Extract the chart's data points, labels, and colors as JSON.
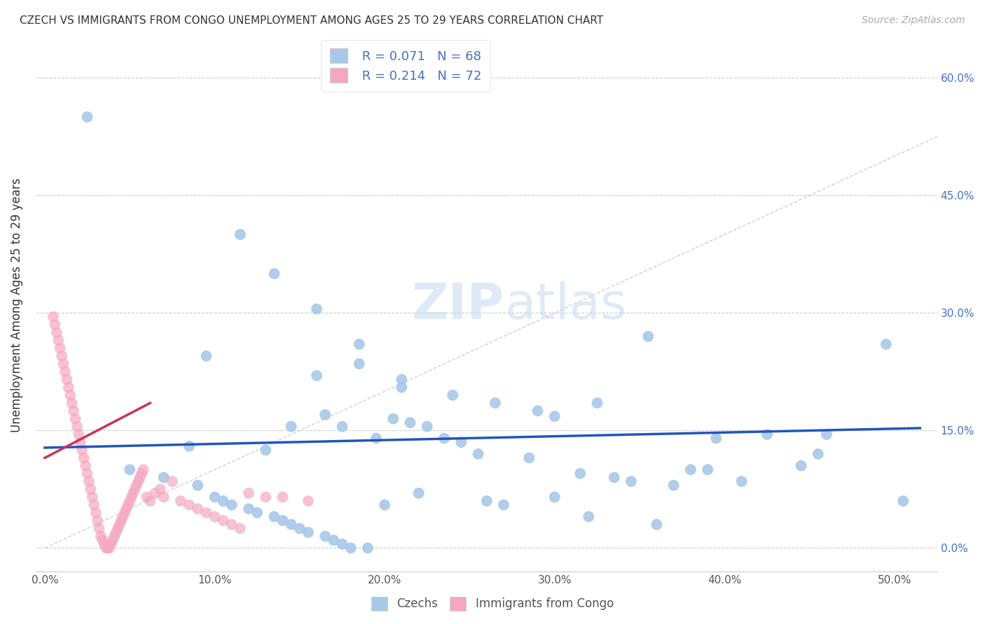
{
  "title": "CZECH VS IMMIGRANTS FROM CONGO UNEMPLOYMENT AMONG AGES 25 TO 29 YEARS CORRELATION CHART",
  "source": "Source: ZipAtlas.com",
  "xlabel_ticks": [
    "0.0%",
    "10.0%",
    "20.0%",
    "30.0%",
    "40.0%",
    "50.0%"
  ],
  "xlabel_vals": [
    0.0,
    0.1,
    0.2,
    0.3,
    0.4,
    0.5
  ],
  "ylabel_ticks": [
    "0.0%",
    "15.0%",
    "30.0%",
    "45.0%",
    "60.0%"
  ],
  "ylabel_vals": [
    0.0,
    0.15,
    0.3,
    0.45,
    0.6
  ],
  "xlim": [
    -0.005,
    0.525
  ],
  "ylim": [
    -0.03,
    0.65
  ],
  "czech_R": 0.071,
  "czech_N": 68,
  "congo_R": 0.214,
  "congo_N": 72,
  "watermark_zip": "ZIP",
  "watermark_atlas": "atlas",
  "czech_color": "#a8c8e8",
  "congo_color": "#f4a8c0",
  "czech_line_color": "#2255BB",
  "congo_line_color": "#CC3355",
  "diagonal_color": "#cccccc",
  "legend_text_color": "#4472C4",
  "background_color": "#ffffff",
  "grid_color": "#cccccc",
  "czech_line_x": [
    0.0,
    0.515
  ],
  "czech_line_y": [
    0.128,
    0.153
  ],
  "congo_line_x": [
    0.0,
    0.062
  ],
  "congo_line_y": [
    0.115,
    0.185
  ],
  "czechs_x": [
    0.025,
    0.115,
    0.135,
    0.16,
    0.185,
    0.095,
    0.185,
    0.16,
    0.21,
    0.21,
    0.24,
    0.265,
    0.29,
    0.3,
    0.325,
    0.355,
    0.395,
    0.425,
    0.46,
    0.495,
    0.505,
    0.085,
    0.13,
    0.145,
    0.165,
    0.175,
    0.195,
    0.205,
    0.215,
    0.225,
    0.235,
    0.245,
    0.255,
    0.285,
    0.315,
    0.335,
    0.345,
    0.37,
    0.38,
    0.39,
    0.41,
    0.445,
    0.455,
    0.05,
    0.07,
    0.09,
    0.1,
    0.105,
    0.11,
    0.12,
    0.125,
    0.135,
    0.14,
    0.145,
    0.15,
    0.155,
    0.165,
    0.17,
    0.175,
    0.18,
    0.19,
    0.2,
    0.22,
    0.26,
    0.27,
    0.3,
    0.32,
    0.36
  ],
  "czechs_y": [
    0.55,
    0.4,
    0.35,
    0.305,
    0.26,
    0.245,
    0.235,
    0.22,
    0.215,
    0.205,
    0.195,
    0.185,
    0.175,
    0.168,
    0.185,
    0.27,
    0.14,
    0.145,
    0.145,
    0.26,
    0.06,
    0.13,
    0.125,
    0.155,
    0.17,
    0.155,
    0.14,
    0.165,
    0.16,
    0.155,
    0.14,
    0.135,
    0.12,
    0.115,
    0.095,
    0.09,
    0.085,
    0.08,
    0.1,
    0.1,
    0.085,
    0.105,
    0.12,
    0.1,
    0.09,
    0.08,
    0.065,
    0.06,
    0.055,
    0.05,
    0.045,
    0.04,
    0.035,
    0.03,
    0.025,
    0.02,
    0.015,
    0.01,
    0.005,
    0.0,
    0.0,
    0.055,
    0.07,
    0.06,
    0.055,
    0.065,
    0.04,
    0.03
  ],
  "congo_x": [
    0.005,
    0.006,
    0.007,
    0.008,
    0.009,
    0.01,
    0.011,
    0.012,
    0.013,
    0.014,
    0.015,
    0.016,
    0.017,
    0.018,
    0.019,
    0.02,
    0.021,
    0.022,
    0.023,
    0.024,
    0.025,
    0.026,
    0.027,
    0.028,
    0.029,
    0.03,
    0.031,
    0.032,
    0.033,
    0.034,
    0.035,
    0.036,
    0.037,
    0.038,
    0.039,
    0.04,
    0.041,
    0.042,
    0.043,
    0.044,
    0.045,
    0.046,
    0.047,
    0.048,
    0.049,
    0.05,
    0.051,
    0.052,
    0.053,
    0.054,
    0.055,
    0.056,
    0.057,
    0.058,
    0.06,
    0.062,
    0.065,
    0.068,
    0.07,
    0.075,
    0.08,
    0.085,
    0.09,
    0.095,
    0.1,
    0.105,
    0.11,
    0.115,
    0.12,
    0.13,
    0.14,
    0.155
  ],
  "congo_y": [
    0.295,
    0.285,
    0.275,
    0.265,
    0.255,
    0.245,
    0.235,
    0.225,
    0.215,
    0.205,
    0.195,
    0.185,
    0.175,
    0.165,
    0.155,
    0.145,
    0.135,
    0.125,
    0.115,
    0.105,
    0.095,
    0.085,
    0.075,
    0.065,
    0.055,
    0.045,
    0.035,
    0.025,
    0.015,
    0.01,
    0.005,
    0.0,
    0.0,
    0.0,
    0.005,
    0.01,
    0.015,
    0.02,
    0.025,
    0.03,
    0.035,
    0.04,
    0.045,
    0.05,
    0.055,
    0.06,
    0.065,
    0.07,
    0.075,
    0.08,
    0.085,
    0.09,
    0.095,
    0.1,
    0.065,
    0.06,
    0.07,
    0.075,
    0.065,
    0.085,
    0.06,
    0.055,
    0.05,
    0.045,
    0.04,
    0.035,
    0.03,
    0.025,
    0.07,
    0.065,
    0.065,
    0.06
  ]
}
